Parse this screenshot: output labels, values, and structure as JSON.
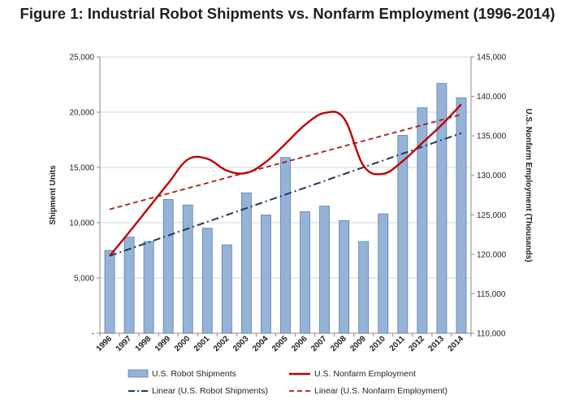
{
  "chart_data": {
    "type": "bar",
    "title": "Figure 1: Industrial Robot Shipments vs. Nonfarm Employment (1996-2014)",
    "categories": [
      "1996",
      "1997",
      "1998",
      "1999",
      "2000",
      "2001",
      "2002",
      "2003",
      "2004",
      "2005",
      "2006",
      "2007",
      "2008",
      "2009",
      "2010",
      "2011",
      "2012",
      "2013",
      "2014"
    ],
    "ylabel": "Shipment Units",
    "y2label": "U.S. Nonfarm Employment (Thousands)",
    "ylim": [
      0,
      25000
    ],
    "y2lim": [
      110000,
      145000
    ],
    "yticks": [
      "-",
      "5,000",
      "10,000",
      "15,000",
      "20,000",
      "25,000"
    ],
    "y2ticks": [
      "110,000",
      "115,000",
      "120,000",
      "125,000",
      "130,000",
      "135,000",
      "140,000",
      "145,000"
    ],
    "grid": true,
    "legend_position": "bottom",
    "series": [
      {
        "name": "U.S. Robot Shipments",
        "type": "bar",
        "axis": "left",
        "color": "#95b3d7",
        "values": [
          7500,
          8700,
          8300,
          12100,
          11600,
          9500,
          8000,
          12700,
          10700,
          15900,
          11000,
          11500,
          10200,
          8300,
          10800,
          17900,
          20400,
          22600,
          21300
        ]
      },
      {
        "name": "U.S. Nonfarm Employment",
        "type": "line",
        "axis": "right",
        "color": "#c00000",
        "values": [
          119800,
          122800,
          125900,
          129000,
          132000,
          132100,
          130600,
          130300,
          131700,
          134000,
          136400,
          137900,
          137200,
          131200,
          130200,
          131800,
          134100,
          136400,
          139000
        ]
      },
      {
        "name": "Linear (U.S. Robot Shipments)",
        "type": "trendline",
        "axis": "left",
        "color": "#1f3864",
        "start": 7000,
        "end": 18100
      },
      {
        "name": "Linear (U.S. Nonfarm Employment)",
        "type": "trendline",
        "axis": "right",
        "color": "#c00000",
        "start": 125700,
        "end": 137700
      }
    ]
  }
}
